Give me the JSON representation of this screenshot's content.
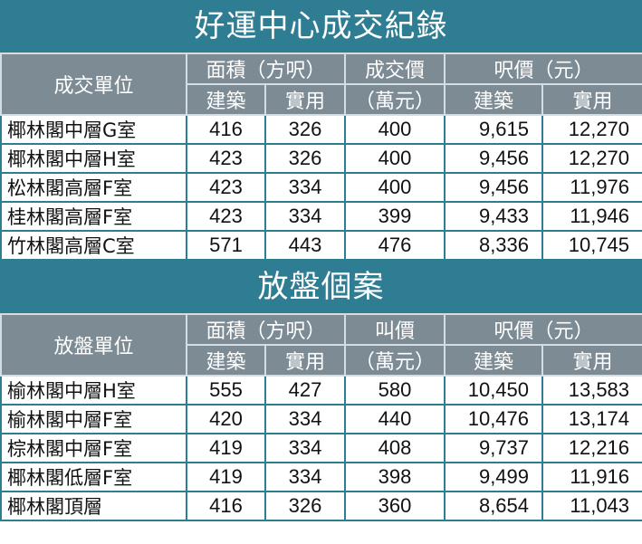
{
  "sections": [
    {
      "title": "好運中心成交紀錄",
      "headers": {
        "unit": "成交單位",
        "area": "面積（方呎）",
        "price": "成交價",
        "price_unit": "（萬元）",
        "psf": "呎價（元）",
        "gross": "建築",
        "saleable": "實用",
        "gross2": "建築",
        "saleable2": "實用"
      },
      "rows": [
        [
          "椰林閣中層G室",
          "416",
          "326",
          "400",
          "9,615",
          "12,270"
        ],
        [
          "椰林閣中層H室",
          "423",
          "326",
          "400",
          "9,456",
          "12,270"
        ],
        [
          "松林閣高層F室",
          "423",
          "334",
          "400",
          "9,456",
          "11,976"
        ],
        [
          "桂林閣高層F室",
          "423",
          "334",
          "399",
          "9,433",
          "11,946"
        ],
        [
          "竹林閣高層C室",
          "571",
          "443",
          "476",
          "8,336",
          "10,745"
        ]
      ]
    },
    {
      "title": "放盤個案",
      "headers": {
        "unit": "放盤單位",
        "area": "面積（方呎）",
        "price": "叫價",
        "price_unit": "（萬元）",
        "psf": "呎價（元）",
        "gross": "建築",
        "saleable": "實用",
        "gross2": "建築",
        "saleable2": "實用"
      },
      "rows": [
        [
          "榆林閣中層H室",
          "555",
          "427",
          "580",
          "10,450",
          "13,583"
        ],
        [
          "榆林閣中層F室",
          "420",
          "334",
          "440",
          "10,476",
          "13,174"
        ],
        [
          "棕林閣中層F室",
          "419",
          "334",
          "408",
          "9,737",
          "12,216"
        ],
        [
          "椰林閣低層F室",
          "419",
          "334",
          "398",
          "9,499",
          "11,916"
        ],
        [
          "椰林閣頂層",
          "416",
          "326",
          "360",
          "8,654",
          "11,043"
        ]
      ]
    }
  ],
  "colors": {
    "title_bg": "#2e7d92",
    "header_bg": "#7d8b94"
  }
}
